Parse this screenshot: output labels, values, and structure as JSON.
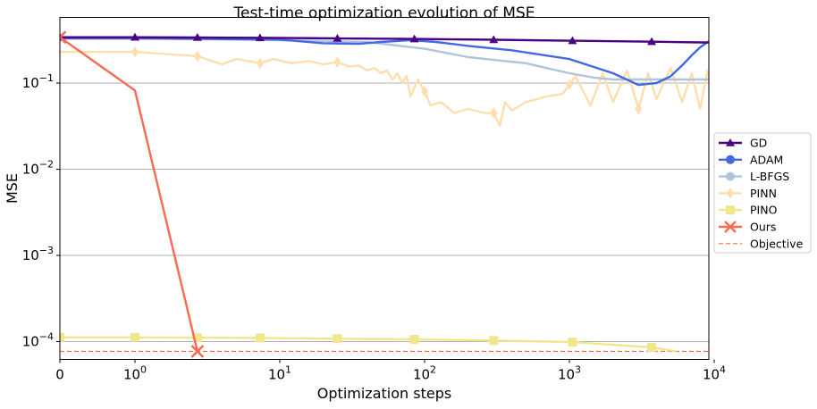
{
  "chart_data": {
    "type": "line",
    "title": "Test-time optimization evolution of MSE",
    "xlabel": "Optimization steps",
    "ylabel": "MSE",
    "xscale": "symlog",
    "yscale": "log",
    "xlim": [
      0,
      10000
    ],
    "ylim": [
      6e-05,
      0.5
    ],
    "x_ticks": [
      {
        "value": 0,
        "label": "0"
      },
      {
        "value": 1,
        "label": "10",
        "exp": "0"
      },
      {
        "value": 10,
        "label": "10",
        "exp": "1"
      },
      {
        "value": 100,
        "label": "10",
        "exp": "2"
      },
      {
        "value": 1000,
        "label": "10",
        "exp": "3"
      },
      {
        "value": 10000,
        "label": "10",
        "exp": "4"
      }
    ],
    "y_ticks": [
      {
        "value": 0.0001,
        "label": "10",
        "exp": "−4"
      },
      {
        "value": 0.001,
        "label": "10",
        "exp": "−3"
      },
      {
        "value": 0.01,
        "label": "10",
        "exp": "−2"
      },
      {
        "value": 0.1,
        "label": "10",
        "exp": "−1"
      }
    ],
    "grid": "horizontal",
    "legend_position": "right",
    "series": [
      {
        "name": "GD",
        "color": "#4b0082",
        "marker": "triangle",
        "x": [
          0,
          1,
          2.7,
          7.3,
          25,
          85,
          300,
          1050,
          3700,
          10000
        ],
        "y": [
          0.34,
          0.34,
          0.338,
          0.335,
          0.33,
          0.325,
          0.318,
          0.31,
          0.302,
          0.295
        ],
        "marker_x": [
          0,
          1,
          2.7,
          7.3,
          25,
          85,
          300,
          1050,
          3700
        ]
      },
      {
        "name": "ADAM",
        "color": "#4169e1",
        "marker": "circle",
        "x": [
          0,
          1,
          3,
          10,
          20,
          35,
          50,
          80,
          120,
          200,
          400,
          1000,
          2000,
          3000,
          4000,
          5000,
          6000,
          7000,
          8000,
          9000,
          10000
        ],
        "y": [
          0.33,
          0.33,
          0.325,
          0.32,
          0.29,
          0.285,
          0.3,
          0.315,
          0.3,
          0.27,
          0.24,
          0.19,
          0.13,
          0.095,
          0.1,
          0.12,
          0.16,
          0.21,
          0.26,
          0.3,
          0.33
        ],
        "marker_x": []
      },
      {
        "name": "L-BFGS",
        "color": "#b0c4de",
        "marker": "circle",
        "x": [
          0,
          1,
          5,
          15,
          40,
          100,
          200,
          500,
          1000,
          1500,
          2000,
          3000,
          4000,
          6000,
          10000
        ],
        "y": [
          0.33,
          0.33,
          0.32,
          0.31,
          0.3,
          0.25,
          0.2,
          0.17,
          0.13,
          0.115,
          0.11,
          0.11,
          0.11,
          0.11,
          0.11
        ],
        "marker_x": []
      },
      {
        "name": "PINN",
        "color": "#ffdead",
        "marker": "diamond",
        "x": [
          0,
          1,
          2.7,
          4,
          5,
          7.3,
          9,
          12,
          16,
          20,
          25,
          30,
          35,
          40,
          45,
          50,
          55,
          60,
          65,
          70,
          75,
          80,
          90,
          100,
          110,
          130,
          160,
          200,
          260,
          300,
          330,
          360,
          400,
          500,
          700,
          900,
          1100,
          1400,
          1700,
          2000,
          2500,
          3000,
          3500,
          4000,
          5000,
          6000,
          7000,
          8000,
          9000,
          10000
        ],
        "y": [
          0.23,
          0.23,
          0.205,
          0.165,
          0.19,
          0.17,
          0.19,
          0.17,
          0.18,
          0.165,
          0.175,
          0.155,
          0.16,
          0.14,
          0.15,
          0.13,
          0.14,
          0.11,
          0.13,
          0.1,
          0.12,
          0.07,
          0.11,
          0.08,
          0.055,
          0.06,
          0.045,
          0.05,
          0.045,
          0.045,
          0.032,
          0.06,
          0.048,
          0.06,
          0.07,
          0.075,
          0.12,
          0.055,
          0.13,
          0.06,
          0.14,
          0.05,
          0.13,
          0.065,
          0.15,
          0.06,
          0.13,
          0.05,
          0.14,
          0.07
        ],
        "marker_x": [
          1,
          2.7,
          7.3,
          25,
          100,
          300,
          1000,
          3000,
          10000
        ]
      },
      {
        "name": "PINO",
        "color": "#f0e68c",
        "marker": "square",
        "x": [
          0,
          1,
          2.7,
          7.3,
          25,
          85,
          300,
          1050,
          3700,
          5500
        ],
        "y": [
          0.000112,
          0.000112,
          0.000111,
          0.00011,
          0.000108,
          0.000106,
          0.000103,
          9.85e-05,
          8.55e-05,
          7.7e-05
        ],
        "marker_x": [
          0,
          1,
          2.7,
          7.3,
          25,
          85,
          300,
          1050,
          3700
        ]
      },
      {
        "name": "Ours",
        "color": "#f96a51",
        "marker": "x",
        "x": [
          0,
          1,
          2.7
        ],
        "y": [
          0.34,
          0.082,
          7.7e-05
        ],
        "marker_x": [
          0,
          2.7
        ]
      },
      {
        "name": "Objective",
        "color": "#f96a51",
        "marker": "none",
        "dashed": true,
        "x": [
          0,
          10000
        ],
        "y": [
          7.7e-05,
          7.7e-05
        ],
        "marker_x": []
      }
    ]
  }
}
